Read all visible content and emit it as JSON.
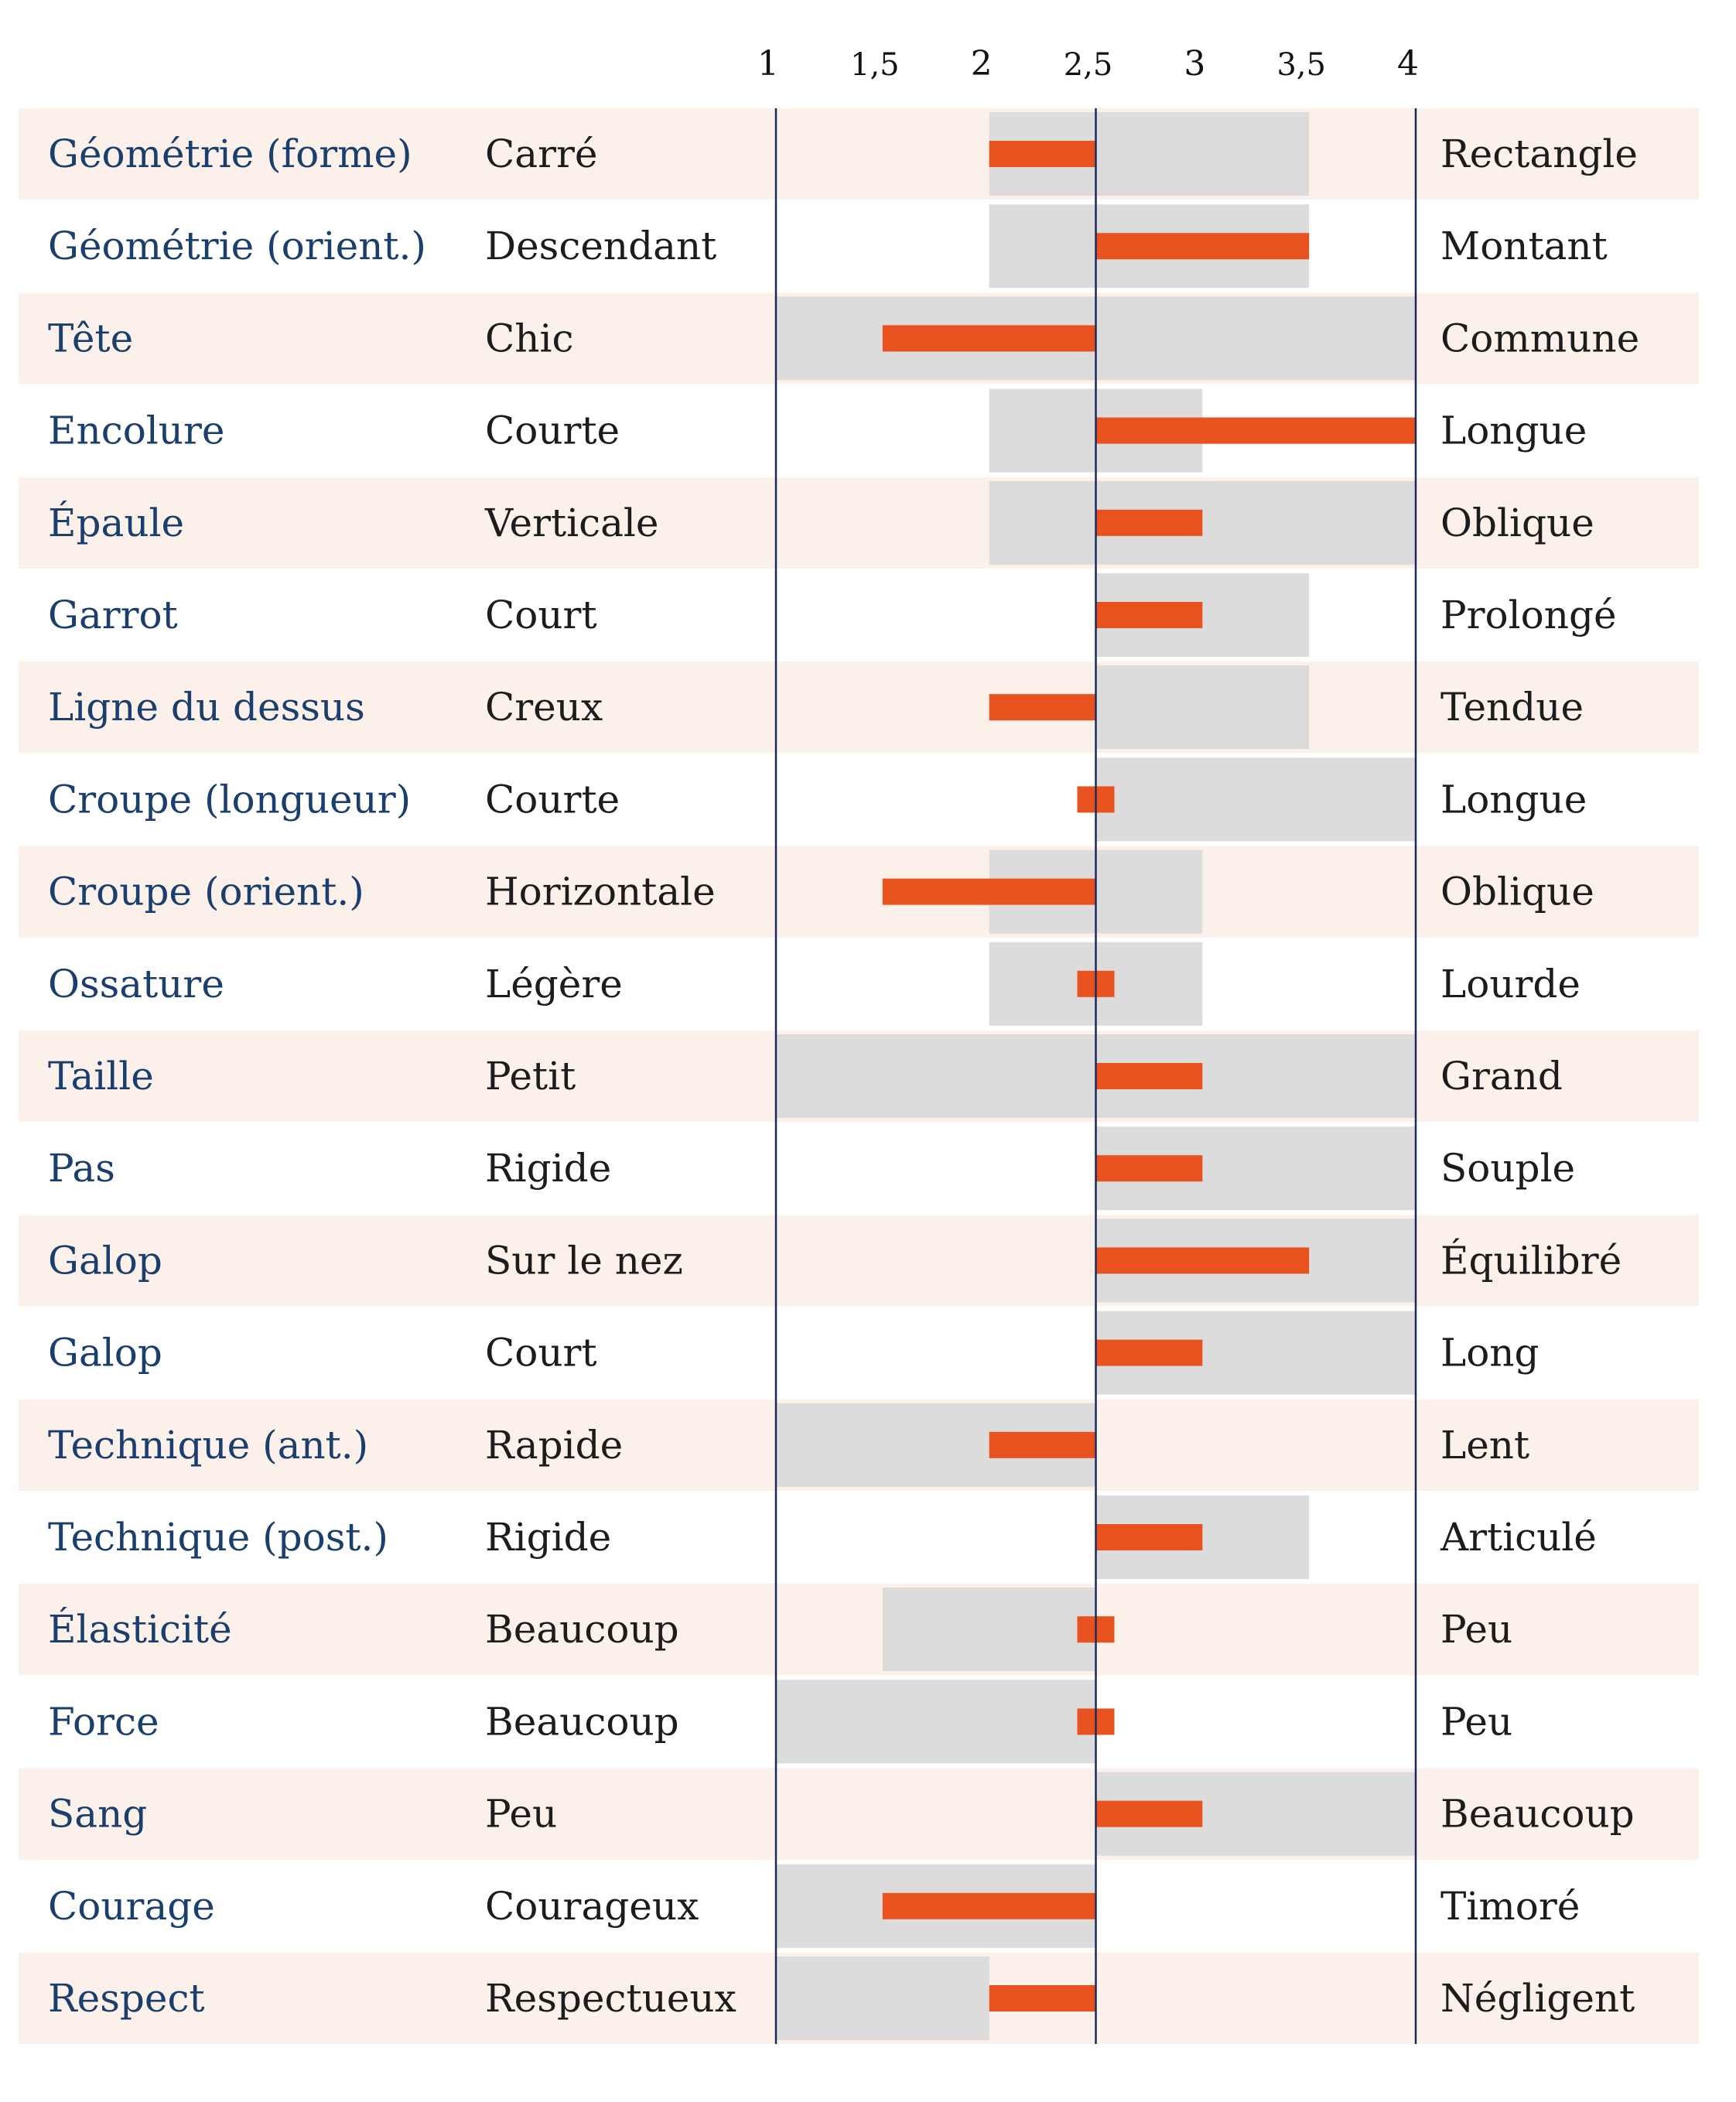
{
  "colors": {
    "label": "#1a3f6e",
    "text": "#1c1c1c",
    "band": "#fcf0ea",
    "range": "#dcdcdc",
    "bar": "#e8521f",
    "axis": "#1a2a5c"
  },
  "chart_data": {
    "type": "bar",
    "orientation": "horizontal",
    "baseline": 2.5,
    "xlim": [
      1,
      4
    ],
    "ticks": [
      {
        "value": 1,
        "label": "1"
      },
      {
        "value": 1.5,
        "label": "1,5"
      },
      {
        "value": 2,
        "label": "2"
      },
      {
        "value": 2.5,
        "label": "2,5"
      },
      {
        "value": 3,
        "label": "3"
      },
      {
        "value": 3.5,
        "label": "3,5"
      },
      {
        "value": 4,
        "label": "4"
      }
    ],
    "rows": [
      {
        "label": "Géométrie (forme)",
        "low": "Carré",
        "high": "Rectangle",
        "value": 2,
        "range": [
          2,
          3.5
        ]
      },
      {
        "label": "Géométrie (orient.)",
        "low": "Descendant",
        "high": "Montant",
        "value": 3.5,
        "range": [
          2,
          3.5
        ]
      },
      {
        "label": "Tête",
        "low": "Chic",
        "high": "Commune",
        "value": 1.5,
        "range": [
          1,
          4
        ]
      },
      {
        "label": "Encolure",
        "low": "Courte",
        "high": "Longue",
        "value": 4,
        "range": [
          2,
          3
        ]
      },
      {
        "label": "Épaule",
        "low": "Verticale",
        "high": "Oblique",
        "value": 3,
        "range": [
          2,
          4
        ]
      },
      {
        "label": "Garrot",
        "low": "Court",
        "high": "Prolongé",
        "value": 3,
        "range": [
          2.5,
          3.5
        ]
      },
      {
        "label": "Ligne du dessus",
        "low": "Creux",
        "high": "Tendue",
        "value": 2,
        "range": [
          2.5,
          3.5
        ]
      },
      {
        "label": "Croupe (longueur)",
        "low": "Courte",
        "high": "Longue",
        "value": 2.5,
        "range": [
          2.5,
          4
        ]
      },
      {
        "label": "Croupe (orient.)",
        "low": "Horizontale",
        "high": "Oblique",
        "value": 1.5,
        "range": [
          2,
          3
        ]
      },
      {
        "label": "Ossature",
        "low": "Légère",
        "high": "Lourde",
        "value": 2.5,
        "range": [
          2,
          3
        ]
      },
      {
        "label": "Taille",
        "low": "Petit",
        "high": "Grand",
        "value": 3,
        "range": [
          1,
          4
        ]
      },
      {
        "label": "Pas",
        "low": "Rigide",
        "high": "Souple",
        "value": 3,
        "range": [
          2.5,
          4
        ]
      },
      {
        "label": "Galop",
        "low": "Sur le nez",
        "high": "Équilibré",
        "value": 3.5,
        "range": [
          2.5,
          4
        ]
      },
      {
        "label": "Galop",
        "low": "Court",
        "high": "Long",
        "value": 3,
        "range": [
          2.5,
          4
        ]
      },
      {
        "label": "Technique (ant.)",
        "low": "Rapide",
        "high": "Lent",
        "value": 2,
        "range": [
          1,
          2.5
        ]
      },
      {
        "label": "Technique (post.)",
        "low": "Rigide",
        "high": "Articulé",
        "value": 3,
        "range": [
          2.5,
          3.5
        ]
      },
      {
        "label": "Élasticité",
        "low": "Beaucoup",
        "high": "Peu",
        "value": 2.5,
        "range": [
          1.5,
          2.5
        ]
      },
      {
        "label": "Force",
        "low": "Beaucoup",
        "high": "Peu",
        "value": 2.5,
        "range": [
          1,
          2.5
        ]
      },
      {
        "label": "Sang",
        "low": "Peu",
        "high": "Beaucoup",
        "value": 3,
        "range": [
          2.5,
          4
        ]
      },
      {
        "label": "Courage",
        "low": "Courageux",
        "high": "Timoré",
        "value": 1.5,
        "range": [
          1,
          2.5
        ]
      },
      {
        "label": "Respect",
        "low": "Respectueux",
        "high": "Négligent",
        "value": 2,
        "range": [
          1,
          2
        ]
      }
    ]
  }
}
